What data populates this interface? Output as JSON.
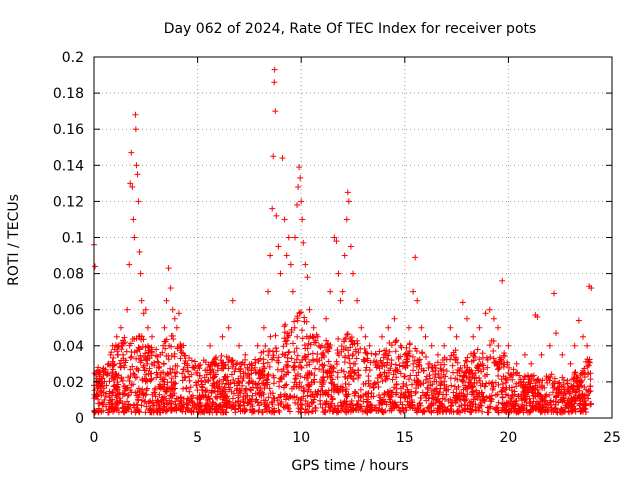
{
  "chart_data": {
    "type": "scatter",
    "title": "Day 062 of 2024, Rate Of TEC Index for receiver pots",
    "xlabel": "GPS time / hours",
    "ylabel": "ROTI / TECUs",
    "xlim": [
      0,
      25
    ],
    "ylim": [
      0,
      0.2
    ],
    "xticks": [
      0,
      5,
      10,
      15,
      20,
      25
    ],
    "xtick_labels": [
      "0",
      "5",
      "10",
      "15",
      "20",
      "25"
    ],
    "yticks": [
      0,
      0.02,
      0.04,
      0.06,
      0.08,
      0.1,
      0.12,
      0.14,
      0.16,
      0.18,
      0.2
    ],
    "ytick_labels": [
      "0",
      "0.02",
      "0.04",
      "0.06",
      "0.08",
      "0.1",
      "0.12",
      "0.14",
      "0.16",
      "0.18",
      "0.2"
    ],
    "grid": true,
    "marker": "+",
    "color": "#ff0000",
    "series": [
      {
        "name": "ROTI",
        "points": [
          [
            0.0,
            0.096
          ],
          [
            0.05,
            0.084
          ],
          [
            0.1,
            0.02
          ],
          [
            0.15,
            0.012
          ],
          [
            0.2,
            0.028
          ],
          [
            0.3,
            0.015
          ],
          [
            0.4,
            0.022
          ],
          [
            0.5,
            0.01
          ],
          [
            0.6,
            0.018
          ],
          [
            0.7,
            0.03
          ],
          [
            0.8,
            0.035
          ],
          [
            0.9,
            0.04
          ],
          [
            1.0,
            0.038
          ],
          [
            1.1,
            0.045
          ],
          [
            1.2,
            0.04
          ],
          [
            1.3,
            0.05
          ],
          [
            1.4,
            0.035
          ],
          [
            1.5,
            0.042
          ],
          [
            1.6,
            0.06
          ],
          [
            1.7,
            0.085
          ],
          [
            1.75,
            0.13
          ],
          [
            1.8,
            0.147
          ],
          [
            1.85,
            0.128
          ],
          [
            1.9,
            0.11
          ],
          [
            1.95,
            0.1
          ],
          [
            2.0,
            0.168
          ],
          [
            2.02,
            0.16
          ],
          [
            2.05,
            0.14
          ],
          [
            2.1,
            0.135
          ],
          [
            2.15,
            0.12
          ],
          [
            2.2,
            0.092
          ],
          [
            2.25,
            0.08
          ],
          [
            2.3,
            0.065
          ],
          [
            2.4,
            0.058
          ],
          [
            2.5,
            0.06
          ],
          [
            2.6,
            0.05
          ],
          [
            2.8,
            0.045
          ],
          [
            3.0,
            0.038
          ],
          [
            3.2,
            0.035
          ],
          [
            3.4,
            0.05
          ],
          [
            3.5,
            0.065
          ],
          [
            3.6,
            0.083
          ],
          [
            3.7,
            0.072
          ],
          [
            3.8,
            0.06
          ],
          [
            3.9,
            0.055
          ],
          [
            4.0,
            0.05
          ],
          [
            4.1,
            0.058
          ],
          [
            4.2,
            0.04
          ],
          [
            4.5,
            0.03
          ],
          [
            4.8,
            0.028
          ],
          [
            5.0,
            0.025
          ],
          [
            5.3,
            0.032
          ],
          [
            5.6,
            0.04
          ],
          [
            5.9,
            0.03
          ],
          [
            6.2,
            0.045
          ],
          [
            6.5,
            0.05
          ],
          [
            6.7,
            0.065
          ],
          [
            7.0,
            0.04
          ],
          [
            7.3,
            0.035
          ],
          [
            7.6,
            0.03
          ],
          [
            7.9,
            0.04
          ],
          [
            8.2,
            0.05
          ],
          [
            8.4,
            0.07
          ],
          [
            8.5,
            0.09
          ],
          [
            8.6,
            0.116
          ],
          [
            8.65,
            0.145
          ],
          [
            8.7,
            0.186
          ],
          [
            8.72,
            0.193
          ],
          [
            8.75,
            0.17
          ],
          [
            8.8,
            0.112
          ],
          [
            8.9,
            0.095
          ],
          [
            9.0,
            0.08
          ],
          [
            9.1,
            0.144
          ],
          [
            9.2,
            0.11
          ],
          [
            9.3,
            0.09
          ],
          [
            9.4,
            0.1
          ],
          [
            9.5,
            0.085
          ],
          [
            9.6,
            0.07
          ],
          [
            9.7,
            0.1
          ],
          [
            9.8,
            0.118
          ],
          [
            9.85,
            0.128
          ],
          [
            9.9,
            0.139
          ],
          [
            9.95,
            0.133
          ],
          [
            10.0,
            0.12
          ],
          [
            10.05,
            0.11
          ],
          [
            10.1,
            0.097
          ],
          [
            10.2,
            0.085
          ],
          [
            10.3,
            0.078
          ],
          [
            10.4,
            0.06
          ],
          [
            10.6,
            0.05
          ],
          [
            10.8,
            0.045
          ],
          [
            11.0,
            0.04
          ],
          [
            11.2,
            0.055
          ],
          [
            11.4,
            0.07
          ],
          [
            11.6,
            0.1
          ],
          [
            11.7,
            0.098
          ],
          [
            11.8,
            0.08
          ],
          [
            11.9,
            0.065
          ],
          [
            12.0,
            0.07
          ],
          [
            12.1,
            0.09
          ],
          [
            12.2,
            0.11
          ],
          [
            12.25,
            0.125
          ],
          [
            12.3,
            0.12
          ],
          [
            12.4,
            0.095
          ],
          [
            12.5,
            0.08
          ],
          [
            12.7,
            0.065
          ],
          [
            12.9,
            0.05
          ],
          [
            13.1,
            0.045
          ],
          [
            13.3,
            0.04
          ],
          [
            13.6,
            0.035
          ],
          [
            13.9,
            0.045
          ],
          [
            14.2,
            0.05
          ],
          [
            14.5,
            0.055
          ],
          [
            14.8,
            0.04
          ],
          [
            15.0,
            0.035
          ],
          [
            15.2,
            0.05
          ],
          [
            15.4,
            0.07
          ],
          [
            15.5,
            0.089
          ],
          [
            15.6,
            0.065
          ],
          [
            15.8,
            0.05
          ],
          [
            16.0,
            0.045
          ],
          [
            16.3,
            0.04
          ],
          [
            16.6,
            0.035
          ],
          [
            16.9,
            0.04
          ],
          [
            17.2,
            0.05
          ],
          [
            17.5,
            0.045
          ],
          [
            17.8,
            0.064
          ],
          [
            18.0,
            0.055
          ],
          [
            18.3,
            0.045
          ],
          [
            18.6,
            0.05
          ],
          [
            18.9,
            0.058
          ],
          [
            19.1,
            0.06
          ],
          [
            19.3,
            0.055
          ],
          [
            19.5,
            0.05
          ],
          [
            19.7,
            0.076
          ],
          [
            20.0,
            0.04
          ],
          [
            20.4,
            0.03
          ],
          [
            20.8,
            0.035
          ],
          [
            21.1,
            0.03
          ],
          [
            21.3,
            0.057
          ],
          [
            21.4,
            0.056
          ],
          [
            21.6,
            0.035
          ],
          [
            22.0,
            0.04
          ],
          [
            22.2,
            0.069
          ],
          [
            22.3,
            0.047
          ],
          [
            22.6,
            0.035
          ],
          [
            23.0,
            0.03
          ],
          [
            23.2,
            0.04
          ],
          [
            23.4,
            0.054
          ],
          [
            23.6,
            0.045
          ],
          [
            23.8,
            0.04
          ],
          [
            23.9,
            0.073
          ],
          [
            24.0,
            0.072
          ]
        ]
      }
    ],
    "envelope": {
      "description_hours": [
        0,
        0.5,
        1,
        1.5,
        2,
        2.5,
        3,
        3.5,
        4,
        4.5,
        5,
        5.5,
        6,
        6.5,
        7,
        7.5,
        8,
        8.5,
        9,
        9.5,
        10,
        10.5,
        11,
        11.5,
        12,
        12.5,
        13,
        13.5,
        14,
        14.5,
        15,
        15.5,
        16,
        16.5,
        17,
        17.5,
        18,
        18.5,
        19,
        19.5,
        20,
        20.5,
        21,
        21.5,
        22,
        22.5,
        23,
        23.5,
        24
      ],
      "typical_upper_roti": [
        0.025,
        0.03,
        0.04,
        0.045,
        0.05,
        0.045,
        0.035,
        0.045,
        0.05,
        0.035,
        0.03,
        0.032,
        0.035,
        0.035,
        0.033,
        0.032,
        0.035,
        0.045,
        0.05,
        0.055,
        0.06,
        0.05,
        0.045,
        0.04,
        0.05,
        0.045,
        0.04,
        0.035,
        0.04,
        0.045,
        0.04,
        0.045,
        0.035,
        0.03,
        0.035,
        0.038,
        0.035,
        0.038,
        0.042,
        0.045,
        0.03,
        0.025,
        0.025,
        0.022,
        0.025,
        0.025,
        0.022,
        0.03,
        0.035
      ],
      "typical_lower_roti": [
        0.003,
        0.003,
        0.003,
        0.003,
        0.003,
        0.003,
        0.003,
        0.003,
        0.003,
        0.003,
        0.003,
        0.003,
        0.003,
        0.003,
        0.003,
        0.003,
        0.003,
        0.003,
        0.003,
        0.003,
        0.003,
        0.003,
        0.003,
        0.003,
        0.003,
        0.003,
        0.003,
        0.003,
        0.003,
        0.003,
        0.003,
        0.003,
        0.003,
        0.003,
        0.003,
        0.003,
        0.003,
        0.003,
        0.003,
        0.003,
        0.003,
        0.003,
        0.003,
        0.003,
        0.003,
        0.003,
        0.003,
        0.003,
        0.003
      ]
    }
  }
}
